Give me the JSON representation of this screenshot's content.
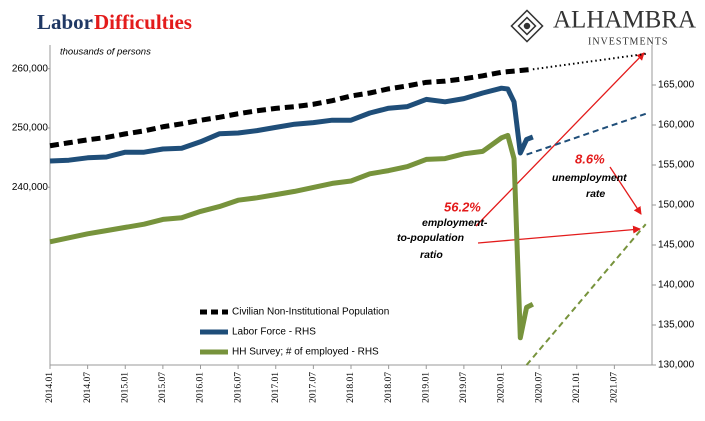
{
  "chart_data": {
    "type": "line",
    "title": "Labor",
    "title_highlight": "Difficulties",
    "logo": {
      "name": "ALHAMBRA",
      "tagline": "INVESTMENTS"
    },
    "annotations": [
      "thousands of persons",
      "56.2%",
      "employment-",
      "to-population",
      "ratio",
      "8.6%",
      "unemployment",
      "rate"
    ],
    "legend": "lower center",
    "x": [
      "2014.01",
      "2014.04",
      "2014.07",
      "2014.10",
      "2015.01",
      "2015.04",
      "2015.07",
      "2015.10",
      "2016.01",
      "2016.04",
      "2016.07",
      "2016.10",
      "2017.01",
      "2017.04",
      "2017.07",
      "2017.10",
      "2018.01",
      "2018.04",
      "2018.07",
      "2018.10",
      "2019.01",
      "2019.04",
      "2019.07",
      "2019.10",
      "2020.01",
      "2020.02",
      "2020.03",
      "2020.04",
      "2020.05",
      "2020.06"
    ],
    "xlim": [
      "2014.01",
      "2022.01"
    ],
    "xticks": [
      "2014.01",
      "2014.07",
      "2015.01",
      "2015.07",
      "2016.01",
      "2016.07",
      "2017.01",
      "2017.07",
      "2018.01",
      "2018.07",
      "2019.01",
      "2019.07",
      "2020.01",
      "2020.07",
      "2021.01",
      "2021.07"
    ],
    "ylim": [
      210000,
      264000
    ],
    "yticks": [
      {
        "value": 240000,
        "label": "240,000"
      },
      {
        "value": 250000,
        "label": "250,000"
      },
      {
        "value": 260000,
        "label": "260,000"
      }
    ],
    "y2lim": [
      130000,
      170000
    ],
    "y2ticks": [
      {
        "value": 130000,
        "label": "130,000"
      },
      {
        "value": 135000,
        "label": "135,000"
      },
      {
        "value": 140000,
        "label": "140,000"
      },
      {
        "value": 145000,
        "label": "145,000"
      },
      {
        "value": 150000,
        "label": "150,000"
      },
      {
        "value": 155000,
        "label": "155,000"
      },
      {
        "value": 160000,
        "label": "160,000"
      },
      {
        "value": 165000,
        "label": "165,000"
      }
    ],
    "series": [
      {
        "name": "Civilian Non-Institutional Population",
        "color": "#000000",
        "dash": "dashed",
        "values": [
          247000,
          247500,
          248000,
          248400,
          249000,
          249500,
          250200,
          250700,
          251300,
          251800,
          252400,
          252900,
          253300,
          253600,
          254000,
          254600,
          255400,
          255900,
          256600,
          257100,
          257700,
          257900,
          258300,
          258800,
          259400,
          259500,
          259600,
          259700,
          259800,
          259900
        ],
        "projection": {
          "dash": "dotted",
          "x": [
            "2020.06",
            "2021.12"
          ],
          "values": [
            259900,
            262500
          ]
        }
      },
      {
        "name": "Labor Force - RHS",
        "color": "#1f4e79",
        "dash": "solid",
        "axis": "y2",
        "values": [
          155500,
          155600,
          155900,
          156000,
          156600,
          156600,
          157000,
          157100,
          157900,
          158900,
          159000,
          159300,
          159700,
          160100,
          160300,
          160600,
          160600,
          161500,
          162100,
          162300,
          163200,
          162900,
          163300,
          164000,
          164600,
          164500,
          162900,
          156500,
          158200,
          158500
        ],
        "projection": {
          "dash": "dashed",
          "x": [
            "2020.05",
            "2021.12"
          ],
          "values": [
            156300,
            161400
          ]
        }
      },
      {
        "name": "HH Survey; # of employed - RHS",
        "color": "#77933c",
        "dash": "solid",
        "axis": "y2",
        "values": [
          145400,
          145900,
          146400,
          146800,
          147200,
          147600,
          148200,
          148400,
          149200,
          149800,
          150600,
          150900,
          151300,
          151700,
          152200,
          152700,
          153000,
          153900,
          154300,
          154800,
          155700,
          155800,
          156400,
          156700,
          158400,
          158700,
          155800,
          133400,
          137200,
          137600
        ],
        "projection": {
          "dash": "dashed",
          "x": [
            "2020.05",
            "2021.12"
          ],
          "values": [
            130000,
            147600
          ]
        }
      }
    ]
  }
}
